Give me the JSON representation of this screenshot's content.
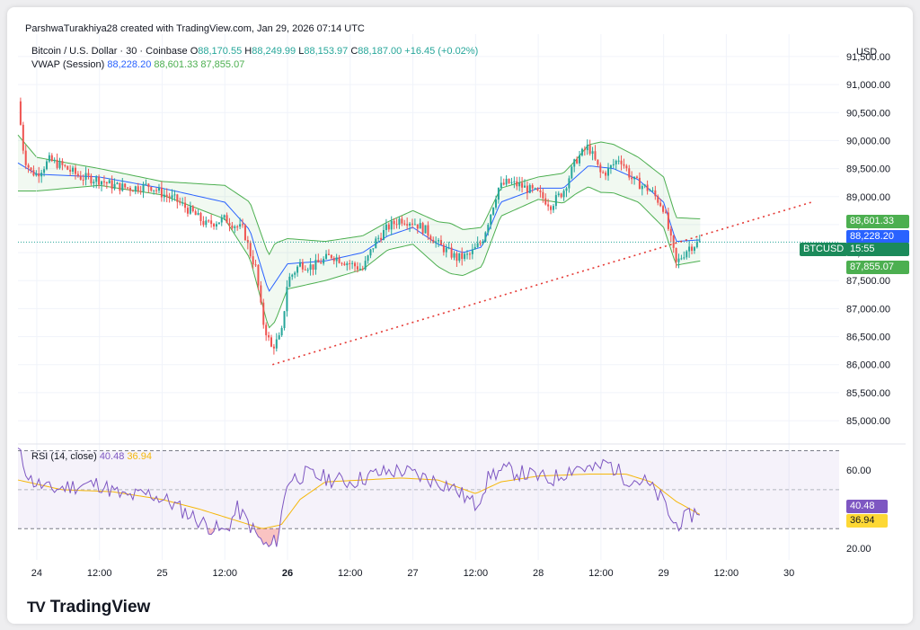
{
  "header": {
    "credit": "ParshwaTurakhiya28 created with TradingView.com, Jan 29, 2026 07:14 UTC"
  },
  "symbol": {
    "name": "Bitcoin / U.S. Dollar · 30 · Coinbase",
    "o_label": "O",
    "o": "88,170.55",
    "h_label": "H",
    "h": "88,249.99",
    "l_label": "L",
    "l": "88,153.97",
    "c_label": "C",
    "c": "88,187.00",
    "change": "+16.45 (+0.02%)"
  },
  "vwap_legend": {
    "name": "VWAP (Session)",
    "vwap": "88,228.20",
    "upper": "88,601.33",
    "lower": "87,855.07"
  },
  "currency": "USD",
  "price_tags": {
    "upper": "88,601.33",
    "vwap": "88,228.20",
    "symbol": "BTCUSD",
    "countdown": "15:55",
    "lower": "87,855.07"
  },
  "rsi_legend": {
    "name": "RSI (14, close)",
    "rsi": "40.48",
    "ma": "36.94"
  },
  "rsi_tags": {
    "rsi": "40.48",
    "ma": "36.94"
  },
  "brand": {
    "logo_mark": "TV",
    "name": "TradingView"
  },
  "colors": {
    "up": "#26a69a",
    "down": "#ef5350",
    "vwap": "#2962ff",
    "band": "#4caf50",
    "rsi": "#7e57c2",
    "rsi_ma": "#f5b70a",
    "trendline": "#e53935"
  },
  "chart_data": [
    {
      "type": "candlestick",
      "title": "Bitcoin / U.S. Dollar · 30 · Coinbase",
      "ylim": [
        84600,
        91900
      ],
      "y_ticks": [
        "91,500.00",
        "91,000.00",
        "90,500.00",
        "90,000.00",
        "89,500.00",
        "89,000.00",
        "88,500.00",
        "88,000.00",
        "87,500.00",
        "87,000.00",
        "86,500.00",
        "86,000.00",
        "85,500.00",
        "85,000.00"
      ],
      "y_tick_values": [
        91500,
        91000,
        90500,
        90000,
        89500,
        89000,
        88500,
        88000,
        87500,
        87000,
        86500,
        86000,
        85500,
        85000
      ],
      "x_ticks": [
        "24",
        "12:00",
        "25",
        "12:00",
        "26",
        "12:00",
        "27",
        "12:00",
        "28",
        "12:00",
        "29",
        "12:00",
        "30"
      ],
      "x_tick_days": [
        1,
        1.5,
        2,
        2.5,
        3,
        3.5,
        4,
        4.5,
        5,
        5.5,
        6,
        6.5,
        7
      ],
      "x_tick_bold": [
        false,
        false,
        false,
        false,
        true,
        false,
        false,
        false,
        false,
        false,
        false,
        false,
        false
      ],
      "xlim_days": [
        0.85,
        7.4
      ],
      "price_anchors": [
        [
          0.85,
          90700
        ],
        [
          0.9,
          89700
        ],
        [
          0.95,
          89450
        ],
        [
          1.0,
          89400
        ],
        [
          1.1,
          89650
        ],
        [
          1.2,
          89550
        ],
        [
          1.35,
          89350
        ],
        [
          1.5,
          89300
        ],
        [
          1.6,
          89200
        ],
        [
          1.75,
          89150
        ],
        [
          1.9,
          89200
        ],
        [
          2.0,
          89050
        ],
        [
          2.1,
          88950
        ],
        [
          2.25,
          88700
        ],
        [
          2.35,
          88500
        ],
        [
          2.5,
          88600
        ],
        [
          2.65,
          88400
        ],
        [
          2.7,
          88000
        ],
        [
          2.75,
          87700
        ],
        [
          2.8,
          86800
        ],
        [
          2.87,
          86300
        ],
        [
          2.95,
          86500
        ],
        [
          3.0,
          87500
        ],
        [
          3.1,
          87800
        ],
        [
          3.2,
          87750
        ],
        [
          3.35,
          87950
        ],
        [
          3.5,
          87800
        ],
        [
          3.6,
          87700
        ],
        [
          3.7,
          88200
        ],
        [
          3.8,
          88450
        ],
        [
          3.9,
          88600
        ],
        [
          4.0,
          88550
        ],
        [
          4.1,
          88400
        ],
        [
          4.2,
          88150
        ],
        [
          4.35,
          87900
        ],
        [
          4.45,
          87950
        ],
        [
          4.55,
          88200
        ],
        [
          4.62,
          88700
        ],
        [
          4.68,
          89150
        ],
        [
          4.75,
          89250
        ],
        [
          4.85,
          89200
        ],
        [
          5.0,
          89050
        ],
        [
          5.1,
          88850
        ],
        [
          5.2,
          89100
        ],
        [
          5.3,
          89650
        ],
        [
          5.4,
          89900
        ],
        [
          5.5,
          89400
        ],
        [
          5.55,
          89450
        ],
        [
          5.65,
          89700
        ],
        [
          5.75,
          89300
        ],
        [
          5.9,
          89100
        ],
        [
          6.0,
          88800
        ],
        [
          6.05,
          88300
        ],
        [
          6.1,
          87800
        ],
        [
          6.15,
          87950
        ],
        [
          6.2,
          88100
        ],
        [
          6.3,
          88190
        ]
      ],
      "vwap_anchors": [
        [
          0.85,
          89600
        ],
        [
          1.0,
          89400
        ],
        [
          1.5,
          89350
        ],
        [
          2.0,
          89150
        ],
        [
          2.5,
          88900
        ],
        [
          2.7,
          88400
        ],
        [
          2.85,
          87300
        ],
        [
          3.0,
          87800
        ],
        [
          3.3,
          87850
        ],
        [
          3.6,
          88000
        ],
        [
          3.8,
          88300
        ],
        [
          4.0,
          88450
        ],
        [
          4.2,
          88150
        ],
        [
          4.4,
          88000
        ],
        [
          4.55,
          88100
        ],
        [
          4.7,
          88900
        ],
        [
          5.0,
          89150
        ],
        [
          5.2,
          89150
        ],
        [
          5.4,
          89550
        ],
        [
          5.6,
          89500
        ],
        [
          5.8,
          89300
        ],
        [
          6.0,
          88900
        ],
        [
          6.1,
          88200
        ],
        [
          6.3,
          88228
        ]
      ],
      "band_halfwidth_anchors": [
        [
          0.85,
          500
        ],
        [
          1.0,
          300
        ],
        [
          1.5,
          150
        ],
        [
          2.0,
          120
        ],
        [
          2.5,
          300
        ],
        [
          2.7,
          500
        ],
        [
          2.9,
          700
        ],
        [
          3.0,
          450
        ],
        [
          3.3,
          350
        ],
        [
          3.6,
          300
        ],
        [
          3.8,
          250
        ],
        [
          4.0,
          300
        ],
        [
          4.3,
          450
        ],
        [
          4.55,
          350
        ],
        [
          4.7,
          250
        ],
        [
          5.0,
          200
        ],
        [
          5.3,
          300
        ],
        [
          5.5,
          450
        ],
        [
          5.8,
          400
        ],
        [
          6.0,
          450
        ],
        [
          6.3,
          373
        ]
      ],
      "trendline": {
        "from": [
          2.88,
          86000
        ],
        "to": [
          7.18,
          88900
        ]
      },
      "last_price": 88187
    },
    {
      "type": "line",
      "title": "RSI (14, close)",
      "ylim": [
        14,
        73
      ],
      "y_ticks": [
        "60.00",
        "20.00"
      ],
      "y_tick_values": [
        60,
        20
      ],
      "band": [
        30,
        70
      ],
      "midline": 50,
      "rsi_anchors": [
        [
          0.85,
          70
        ],
        [
          0.95,
          55
        ],
        [
          1.1,
          50
        ],
        [
          1.3,
          52
        ],
        [
          1.5,
          53
        ],
        [
          1.7,
          46
        ],
        [
          1.9,
          48
        ],
        [
          2.05,
          44
        ],
        [
          2.2,
          38
        ],
        [
          2.35,
          32
        ],
        [
          2.5,
          28
        ],
        [
          2.6,
          40
        ],
        [
          2.7,
          32
        ],
        [
          2.78,
          24
        ],
        [
          2.85,
          20
        ],
        [
          2.92,
          25
        ],
        [
          3.0,
          55
        ],
        [
          3.15,
          58
        ],
        [
          3.3,
          56
        ],
        [
          3.5,
          54
        ],
        [
          3.7,
          58
        ],
        [
          3.9,
          60
        ],
        [
          4.1,
          56
        ],
        [
          4.3,
          52
        ],
        [
          4.5,
          42
        ],
        [
          4.62,
          58
        ],
        [
          4.75,
          60
        ],
        [
          4.9,
          58
        ],
        [
          5.1,
          55
        ],
        [
          5.3,
          62
        ],
        [
          5.45,
          60
        ],
        [
          5.55,
          64
        ],
        [
          5.7,
          56
        ],
        [
          5.85,
          54
        ],
        [
          6.0,
          44
        ],
        [
          6.08,
          32
        ],
        [
          6.15,
          34
        ],
        [
          6.3,
          40.5
        ]
      ],
      "ma_anchors": [
        [
          0.85,
          55
        ],
        [
          1.2,
          50
        ],
        [
          1.6,
          49
        ],
        [
          2.0,
          45
        ],
        [
          2.3,
          40
        ],
        [
          2.6,
          34
        ],
        [
          2.8,
          30
        ],
        [
          2.95,
          32
        ],
        [
          3.1,
          45
        ],
        [
          3.3,
          54
        ],
        [
          3.6,
          55
        ],
        [
          3.9,
          56
        ],
        [
          4.2,
          55
        ],
        [
          4.5,
          48
        ],
        [
          4.7,
          54
        ],
        [
          5.0,
          57
        ],
        [
          5.4,
          58
        ],
        [
          5.7,
          58
        ],
        [
          5.9,
          54
        ],
        [
          6.1,
          44
        ],
        [
          6.3,
          36.9
        ]
      ]
    }
  ]
}
